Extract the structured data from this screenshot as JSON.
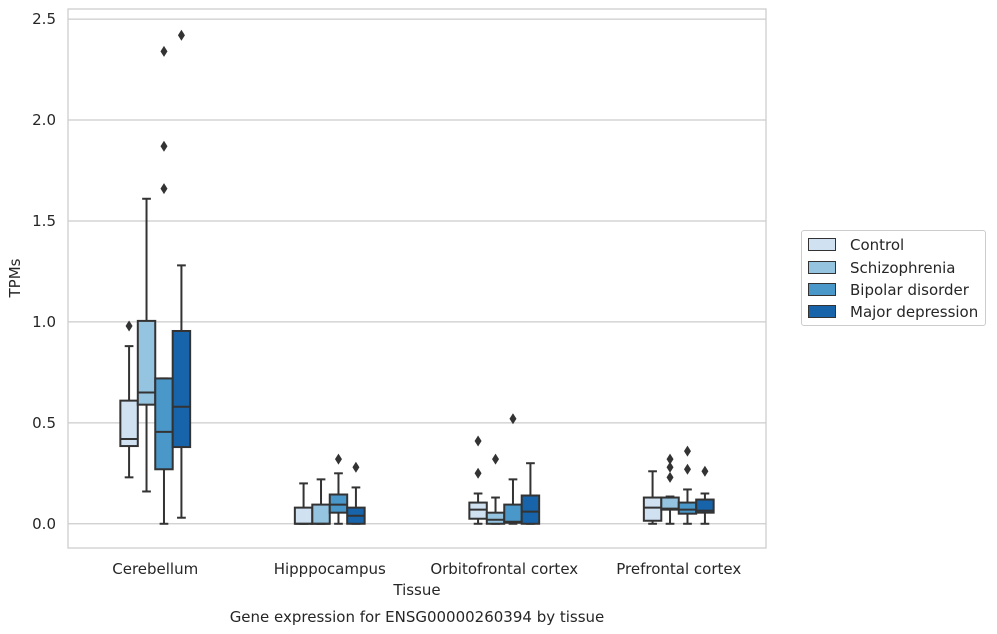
{
  "caption": "Gene expression for ENSG00000260394 by tissue",
  "colors": {
    "Control": "#d0e1f2",
    "Schizophrenia": "#94c4df",
    "Bipolar disorder": "#4a98c9",
    "Major depression": "#1764ab",
    "line": "#333333",
    "grid": "#cccccc"
  },
  "chart_data": {
    "type": "box",
    "title": "",
    "xlabel": "Tissue",
    "ylabel": "TPMs",
    "ylim": [
      -0.12,
      2.55
    ],
    "yticks": [
      0.0,
      0.5,
      1.0,
      1.5,
      2.0,
      2.5
    ],
    "ytick_labels": [
      "0.0",
      "0.5",
      "1.0",
      "1.5",
      "2.0",
      "2.5"
    ],
    "grid": "horizontal",
    "legend_position": "right",
    "categories": [
      "Cerebellum",
      "Hipppocampus",
      "Orbitofrontal cortex",
      "Prefrontal cortex"
    ],
    "series": [
      {
        "name": "Control",
        "boxes": [
          {
            "whislo": 0.23,
            "q1": 0.385,
            "med": 0.42,
            "q3": 0.61,
            "whishi": 0.88,
            "fliers": [
              0.98
            ]
          },
          {
            "whislo": 0.0,
            "q1": 0.0,
            "med": 0.0,
            "q3": 0.08,
            "whishi": 0.2,
            "fliers": []
          },
          {
            "whislo": 0.0,
            "q1": 0.025,
            "med": 0.07,
            "q3": 0.105,
            "whishi": 0.15,
            "fliers": [
              0.25,
              0.41
            ]
          },
          {
            "whislo": 0.0,
            "q1": 0.015,
            "med": 0.08,
            "q3": 0.13,
            "whishi": 0.26,
            "fliers": []
          }
        ]
      },
      {
        "name": "Schizophrenia",
        "boxes": [
          {
            "whislo": 0.16,
            "q1": 0.59,
            "med": 0.65,
            "q3": 1.005,
            "whishi": 1.61,
            "fliers": []
          },
          {
            "whislo": 0.0,
            "q1": 0.0,
            "med": 0.0,
            "q3": 0.095,
            "whishi": 0.22,
            "fliers": []
          },
          {
            "whislo": 0.0,
            "q1": 0.0,
            "med": 0.02,
            "q3": 0.055,
            "whishi": 0.13,
            "fliers": [
              0.32
            ]
          },
          {
            "whislo": 0.0,
            "q1": 0.07,
            "med": 0.075,
            "q3": 0.13,
            "whishi": 0.135,
            "fliers": [
              0.23,
              0.28,
              0.32
            ]
          }
        ]
      },
      {
        "name": "Bipolar disorder",
        "boxes": [
          {
            "whislo": 0.0,
            "q1": 0.27,
            "med": 0.455,
            "q3": 0.72,
            "whishi": 0.72,
            "fliers": [
              1.66,
              1.87,
              2.34
            ]
          },
          {
            "whislo": 0.0,
            "q1": 0.055,
            "med": 0.095,
            "q3": 0.145,
            "whishi": 0.25,
            "fliers": [
              0.32
            ]
          },
          {
            "whislo": 0.0,
            "q1": 0.005,
            "med": 0.01,
            "q3": 0.095,
            "whishi": 0.22,
            "fliers": [
              0.52
            ]
          },
          {
            "whislo": 0.0,
            "q1": 0.05,
            "med": 0.07,
            "q3": 0.105,
            "whishi": 0.17,
            "fliers": [
              0.27,
              0.36
            ]
          }
        ]
      },
      {
        "name": "Major depression",
        "boxes": [
          {
            "whislo": 0.03,
            "q1": 0.38,
            "med": 0.58,
            "q3": 0.955,
            "whishi": 1.28,
            "fliers": [
              2.42
            ]
          },
          {
            "whislo": 0.0,
            "q1": 0.0,
            "med": 0.04,
            "q3": 0.08,
            "whishi": 0.18,
            "fliers": [
              0.28
            ]
          },
          {
            "whislo": 0.0,
            "q1": 0.0,
            "med": 0.06,
            "q3": 0.14,
            "whishi": 0.3,
            "fliers": []
          },
          {
            "whislo": 0.0,
            "q1": 0.055,
            "med": 0.065,
            "q3": 0.12,
            "whishi": 0.15,
            "fliers": [
              0.26
            ]
          }
        ]
      }
    ]
  }
}
